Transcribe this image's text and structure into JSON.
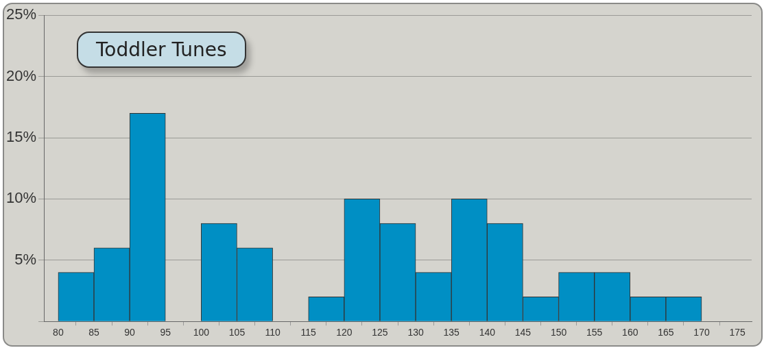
{
  "chart_data": {
    "type": "histogram",
    "title": "Toddler Tunes",
    "bins": [
      80,
      85,
      90,
      95,
      100,
      105,
      110,
      115,
      120,
      125,
      130,
      135,
      140,
      145,
      150,
      155,
      160,
      165,
      170,
      175
    ],
    "values": [
      4,
      6,
      17,
      0,
      8,
      6,
      0,
      2,
      10,
      8,
      4,
      10,
      8,
      2,
      4,
      4,
      2,
      2,
      0
    ],
    "color": "#008fc4",
    "xlim": [
      78,
      177
    ],
    "xticks": [
      80,
      85,
      90,
      95,
      100,
      105,
      110,
      115,
      120,
      125,
      130,
      135,
      140,
      145,
      150,
      155,
      160,
      165,
      170,
      175
    ],
    "ylim": [
      0,
      25
    ],
    "yticks": [
      {
        "value": 0,
        "label": null
      },
      {
        "value": 5,
        "label": "5%"
      },
      {
        "value": 10,
        "label": "10%"
      },
      {
        "value": 15,
        "label": "15%"
      },
      {
        "value": 20,
        "label": "20%"
      },
      {
        "value": 25,
        "label": "25%"
      }
    ],
    "grid": "y",
    "legend": false
  }
}
